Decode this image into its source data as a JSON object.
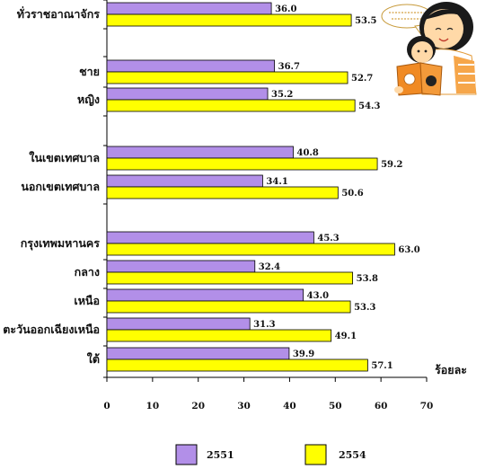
{
  "chart_data": {
    "type": "bar",
    "orientation": "horizontal",
    "categories": [
      "ทั่วราชอาณาจักร",
      "ชาย",
      "หญิง",
      "ในเขตเทศบาล",
      "นอกเขตเทศบาล",
      "กรุงเทพมหานคร",
      "กลาง",
      "เหนือ",
      "ตะวันออกเฉียงเหนือ",
      "ใต้"
    ],
    "series": [
      {
        "name": "2551",
        "values": [
          36.0,
          36.7,
          35.2,
          40.8,
          34.1,
          45.3,
          32.4,
          43.0,
          31.3,
          39.9
        ]
      },
      {
        "name": "2554",
        "values": [
          53.5,
          52.7,
          54.3,
          59.2,
          50.6,
          63.0,
          53.8,
          53.3,
          49.1,
          57.1
        ]
      }
    ],
    "xlim": [
      0,
      70
    ],
    "xticks": [
      0,
      10,
      20,
      30,
      40,
      50,
      60,
      70
    ],
    "xlabel": "ร้อยละ",
    "legend_position": "bottom",
    "grid": false
  },
  "colors": {
    "series_2551": "#b28fe8",
    "series_2554": "#ffff00",
    "bar_border": "#000000"
  },
  "decoration": {
    "icon": "mother-child-reading-illustration-icon"
  }
}
